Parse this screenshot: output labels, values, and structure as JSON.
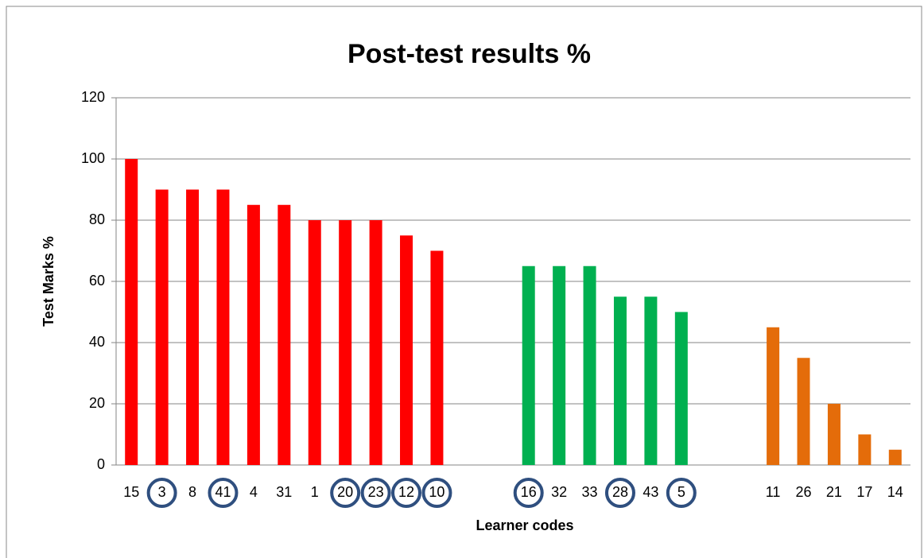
{
  "chart_data": {
    "type": "bar",
    "title": "Post-test results %",
    "x_label": "Learner codes",
    "y_label": "Test Marks %",
    "categories": [
      "15",
      "3",
      "8",
      "41",
      "4",
      "31",
      "1",
      "20",
      "23",
      "12",
      "10",
      null,
      null,
      "16",
      "32",
      "33",
      "28",
      "43",
      "5",
      null,
      null,
      "11",
      "26",
      "21",
      "17",
      "14"
    ],
    "values": [
      100,
      90,
      90,
      90,
      85,
      85,
      80,
      80,
      80,
      75,
      70,
      null,
      null,
      65,
      65,
      65,
      55,
      55,
      50,
      null,
      null,
      45,
      35,
      20,
      10,
      5
    ],
    "colors": [
      "#ff0000",
      "#ff0000",
      "#ff0000",
      "#ff0000",
      "#ff0000",
      "#ff0000",
      "#ff0000",
      "#ff0000",
      "#ff0000",
      "#ff0000",
      "#ff0000",
      null,
      null,
      "#00b050",
      "#00b050",
      "#00b050",
      "#00b050",
      "#00b050",
      "#00b050",
      null,
      null,
      "#e46c0a",
      "#e46c0a",
      "#e46c0a",
      "#e46c0a",
      "#e46c0a"
    ],
    "circled": [
      false,
      true,
      false,
      true,
      false,
      false,
      false,
      true,
      true,
      true,
      true,
      false,
      false,
      true,
      false,
      false,
      true,
      false,
      true,
      false,
      false,
      false,
      false,
      false,
      false,
      false
    ],
    "ylim": [
      0,
      120
    ],
    "yticks": [
      0,
      20,
      40,
      60,
      80,
      100,
      120
    ],
    "grid": true
  }
}
